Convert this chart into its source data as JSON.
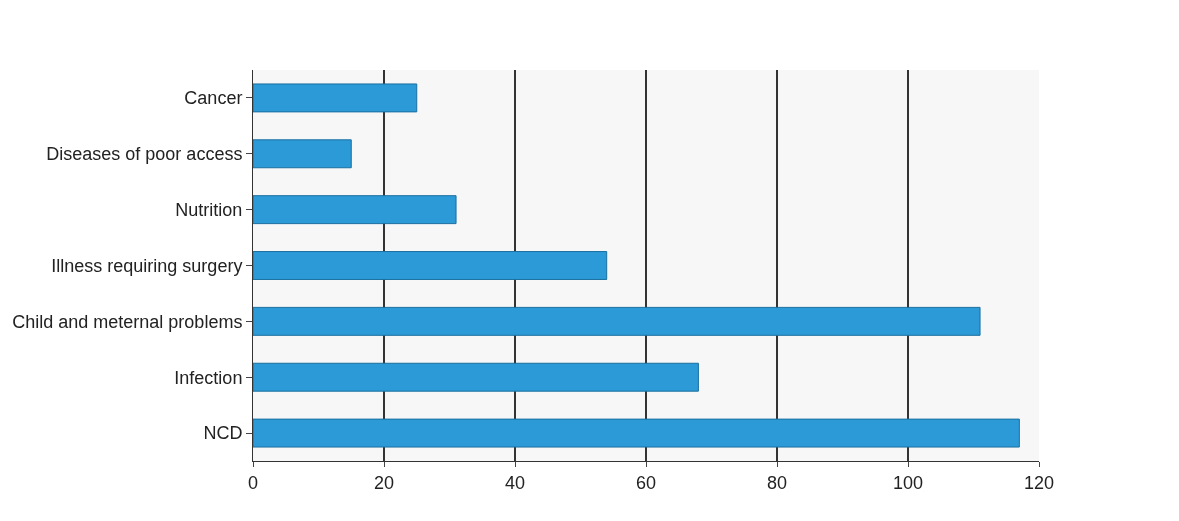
{
  "chart_data": {
    "type": "bar",
    "orientation": "horizontal",
    "categories": [
      "Cancer",
      "Diseases of poor access",
      "Nutrition",
      "Illness requiring surgery",
      "Child and meternal problems",
      "Infection",
      "NCD"
    ],
    "values": [
      25,
      15,
      31,
      54,
      111,
      68,
      117
    ],
    "color": "#2b9ad6",
    "xlim": [
      0,
      120
    ],
    "xticks": [
      0,
      20,
      40,
      60,
      80,
      100,
      120
    ],
    "grid": "x"
  }
}
